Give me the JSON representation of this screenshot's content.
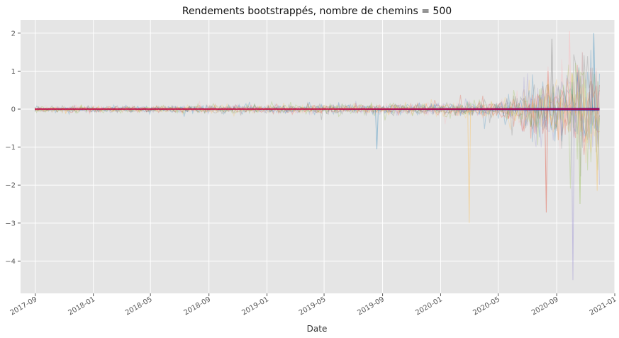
{
  "chart_data": {
    "type": "line",
    "title": "Rendements bootstrappés, nombre de chemins = 500",
    "xlabel": "Date",
    "ylabel": "",
    "x_tick_labels": [
      "2017-09",
      "2018-01",
      "2018-05",
      "2018-09",
      "2019-01",
      "2019-05",
      "2019-09",
      "2020-01",
      "2020-05",
      "2020-09",
      "2021-01"
    ],
    "y_tick_labels": [
      "−4",
      "−3",
      "−2",
      "−1",
      "0",
      "1",
      "2"
    ],
    "y_ticks": [
      -4,
      -3,
      -2,
      -1,
      0,
      1,
      2
    ],
    "xlim": [
      "2017-08-01",
      "2021-01-01"
    ],
    "ylim": [
      -4.85,
      2.35
    ],
    "x_start": "2017-08-31",
    "x_end": "2020-11-30",
    "grid": true,
    "legend": "none",
    "n_paths": 500,
    "series_colors": [
      "#e24a33",
      "#348abd",
      "#988ed5",
      "#777777",
      "#fbc15e",
      "#8eba42",
      "#ffb5b8"
    ],
    "mean_line_color": "#c4003c",
    "mean_band_color": "#3a2aa8",
    "notable_extremes": [
      {
        "date": "2019-08-20",
        "value": -1.05
      },
      {
        "date": "2020-03-01",
        "value": -3.0
      },
      {
        "date": "2020-08-10",
        "value": -2.72
      },
      {
        "date": "2020-08-22",
        "value": 1.85
      },
      {
        "date": "2020-09-28",
        "value": 2.05
      },
      {
        "date": "2020-10-05",
        "value": -4.5
      },
      {
        "date": "2020-10-20",
        "value": -2.5
      },
      {
        "date": "2020-11-18",
        "value": 2.0
      },
      {
        "date": "2020-11-25",
        "value": -2.15
      }
    ]
  },
  "style": {
    "axes_background": "#e5e5e5",
    "grid_color": "#ffffff"
  }
}
